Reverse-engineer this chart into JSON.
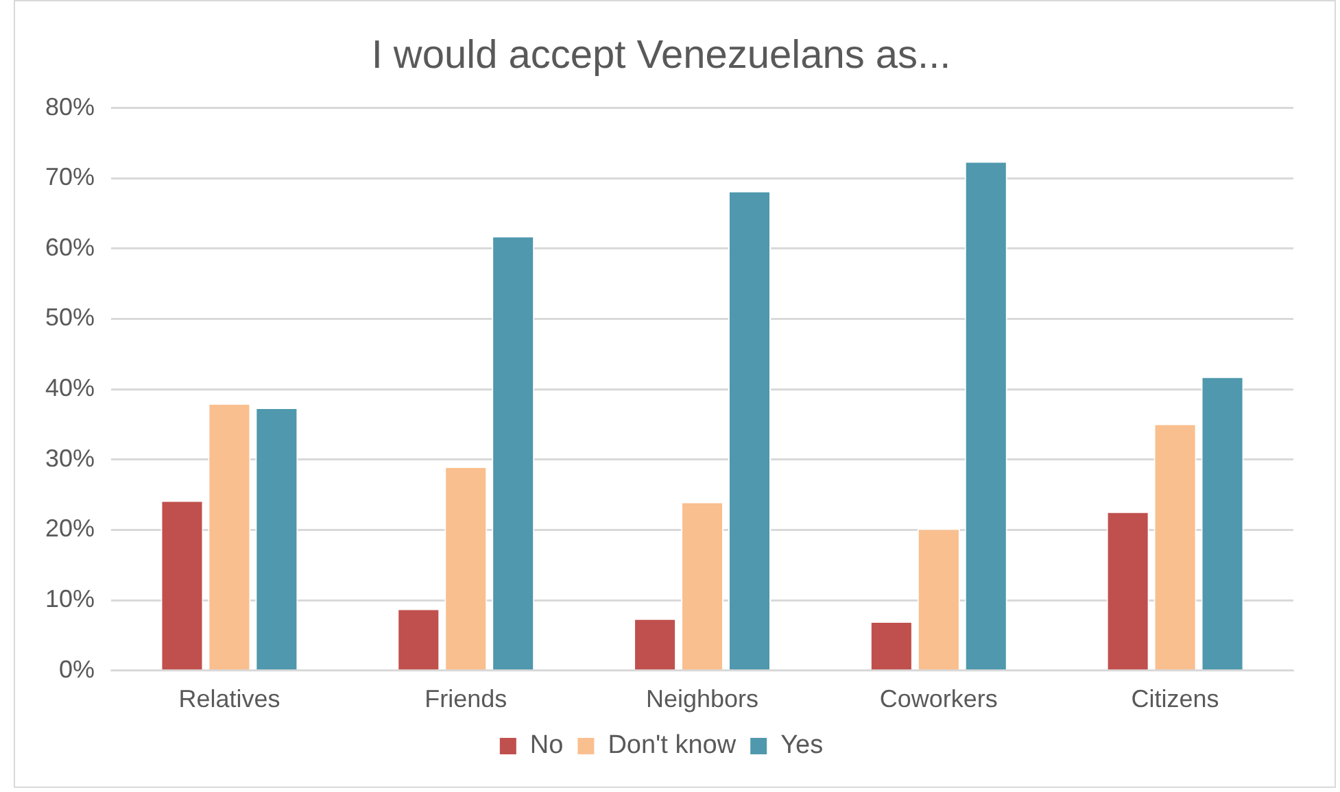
{
  "chart_data": {
    "type": "bar",
    "title": "I would accept Venezuelans as...",
    "categories": [
      "Relatives",
      "Friends",
      "Neighbors",
      "Coworkers",
      "Citizens"
    ],
    "series": [
      {
        "name": "No",
        "color": "#c0504d",
        "values": [
          24.2,
          8.8,
          7.4,
          7.0,
          22.6
        ]
      },
      {
        "name": "Don't know",
        "color": "#f9bf8f",
        "values": [
          38.0,
          29.0,
          24.0,
          20.2,
          35.1
        ]
      },
      {
        "name": "Yes",
        "color": "#4f98ad",
        "values": [
          37.4,
          61.8,
          68.2,
          72.4,
          41.8
        ]
      }
    ],
    "ylim": [
      0,
      80
    ],
    "yticks": [
      {
        "value": 0,
        "label": "0%"
      },
      {
        "value": 10,
        "label": "10%"
      },
      {
        "value": 20,
        "label": "20%"
      },
      {
        "value": 30,
        "label": "30%"
      },
      {
        "value": 40,
        "label": "40%"
      },
      {
        "value": 50,
        "label": "50%"
      },
      {
        "value": 60,
        "label": "60%"
      },
      {
        "value": 70,
        "label": "70%"
      },
      {
        "value": 80,
        "label": "80%"
      }
    ],
    "grid": "y",
    "legend": "bottom"
  }
}
